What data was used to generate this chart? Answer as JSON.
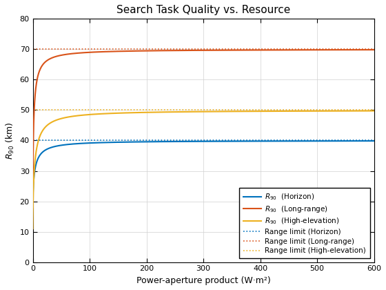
{
  "title": "Search Task Quality vs. Resource",
  "xlabel": "Power-aperture product (W·m²)",
  "ylabel": "R_{90} (km)",
  "xlim": [
    0,
    600
  ],
  "ylim": [
    0,
    80
  ],
  "xticks": [
    0,
    100,
    200,
    300,
    400,
    500,
    600
  ],
  "yticks": [
    0,
    10,
    20,
    30,
    40,
    50,
    60,
    70,
    80
  ],
  "range_limits": {
    "Horizon": 40.0,
    "Long-range": 70.0,
    "High-elevation": 50.0
  },
  "colors": {
    "Horizon": "#0072BD",
    "Long-range": "#D95319",
    "High-elevation": "#EDB120"
  },
  "curve_params": {
    "Horizon": {
      "R_limit": 40.0,
      "R0": 18.0,
      "k": 8.0
    },
    "Long-range": {
      "R_limit": 70.0,
      "R0": 18.0,
      "k": 4.0
    },
    "High-elevation": {
      "R_limit": 50.0,
      "R0": 11.0,
      "k": 8.0
    }
  },
  "legend_loc": "lower right",
  "figsize": [
    5.6,
    4.2
  ],
  "dpi": 100,
  "bg_color": "#ffffff",
  "grid_color": "#d0d0d0"
}
